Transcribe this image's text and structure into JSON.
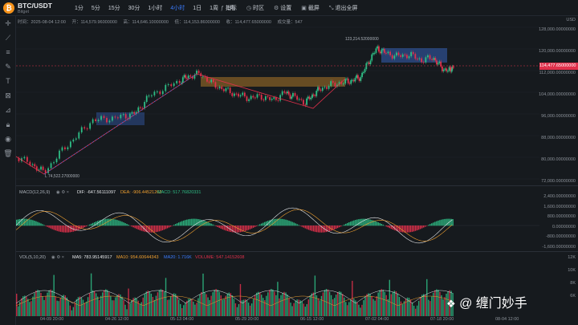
{
  "header": {
    "pair": "BTC/USDT",
    "exchange": "Bitget",
    "logo_glyph": "₿",
    "intervals": [
      "1分",
      "5分",
      "15分",
      "30分",
      "1小时",
      "4小时",
      "1日",
      "1周",
      "1月"
    ],
    "active_interval": "4小时",
    "tools": [
      {
        "icon": "indicator-icon",
        "label": "指标"
      },
      {
        "icon": "timezone-icon",
        "label": "时区"
      },
      {
        "icon": "settings-icon",
        "label": "设置"
      },
      {
        "icon": "screenshot-icon",
        "label": "截屏"
      },
      {
        "icon": "exit-fullscreen-icon",
        "label": "退出全屏"
      }
    ]
  },
  "ohlc": {
    "time": "时间：2025-08-04 12:00",
    "open": "开：114,579.96000000",
    "high": "高：114,646.10000000",
    "low": "低：114,153.86000000",
    "close": "收：114,477.65000000",
    "volume": "成交量：547"
  },
  "left_tools": [
    "crosshair-icon",
    "trendline-icon",
    "fib-icon",
    "brush-icon",
    "text-icon",
    "pattern-icon",
    "ruler-icon",
    "lock-icon",
    "eye-icon",
    "trash-icon"
  ],
  "price_axis": {
    "unit": "USD",
    "ticks": [
      "128,000.00000000",
      "120,000.00000000",
      "112,000.00000000",
      "104,000.00000000",
      "96,000.00000000",
      "88,000.00000000",
      "80,000.00000000",
      "72,000.00000000"
    ],
    "last_price": "114,477.65000000",
    "last_price_color": "#e0304b"
  },
  "annotations": {
    "high_label": "123,214.52000000",
    "low_label": "L 74,522.27000000"
  },
  "macd": {
    "title": "MACD(12,26,9)",
    "dif": "DIF: -647.56111097",
    "dea": "DEA: -906.44521262",
    "macd": "MACD: 517.76820331",
    "ticks": [
      "2,400.00000000",
      "1,600.00000000",
      "800.00000000",
      "0.00000000",
      "-800.00000000",
      "-1,600.00000000"
    ]
  },
  "volume": {
    "title": "VOL(5,10,20)",
    "ma5": "MA5: 783.95145917",
    "ma10": "MA10: 954.60644343",
    "ma20": "MA20: 1.716K",
    "vol": "VOLUME: 547.14152608",
    "ticks": [
      "12K",
      "10K",
      "8K",
      "6K"
    ]
  },
  "time_axis": [
    "04-09 20:00",
    "04-26 12:00",
    "05-13 04:00",
    "05-29 20:00",
    "06-15 12:00",
    "07-02 04:00",
    "07-18 20:00",
    "08-04 12:00"
  ],
  "watermark": "@ 缠门妙手",
  "colors": {
    "up": "#2ebd85",
    "down": "#e0304b",
    "accent": "#3b7cff",
    "dif": "#e6e8eb",
    "dea": "#f0a030",
    "zone": "#3b6fd6",
    "zone_orange": "#c98a2a"
  }
}
